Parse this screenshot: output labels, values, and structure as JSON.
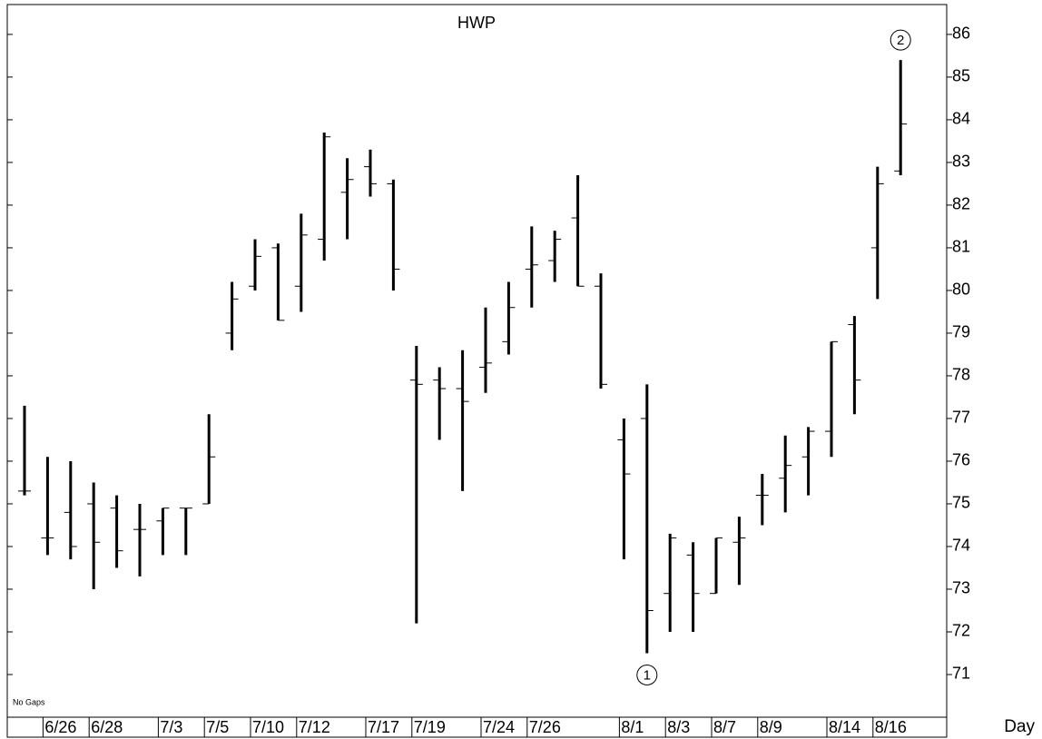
{
  "chart_data": {
    "type": "ohlc",
    "title": "HWP",
    "categories": [
      null,
      "6/26",
      null,
      "6/28",
      null,
      null,
      "7/3",
      null,
      "7/5",
      null,
      "7/10",
      null,
      "7/12",
      null,
      null,
      "7/17",
      null,
      "7/19",
      null,
      null,
      "7/24",
      null,
      "7/26",
      null,
      null,
      null,
      "8/1",
      null,
      "8/3",
      null,
      "8/7",
      null,
      "8/9",
      null,
      null,
      "8/14",
      null,
      "8/16",
      null
    ],
    "series": [
      {
        "color": "#000000",
        "open": [
          75.3,
          74.2,
          74.8,
          75.0,
          74.9,
          74.4,
          74.6,
          74.9,
          75.0,
          79.0,
          80.1,
          81.0,
          80.1,
          81.2,
          82.3,
          82.9,
          82.5,
          77.9,
          77.9,
          77.7,
          78.2,
          78.8,
          80.5,
          80.7,
          81.7,
          80.1,
          76.5,
          77.0,
          72.9,
          73.8,
          72.9,
          74.1,
          75.2,
          75.6,
          76.1,
          76.7,
          79.2,
          81.0,
          82.8
        ],
        "high": [
          77.3,
          76.1,
          76.0,
          75.5,
          75.2,
          75.0,
          74.9,
          74.9,
          77.1,
          80.2,
          81.2,
          81.1,
          81.8,
          83.7,
          83.1,
          83.3,
          82.6,
          78.7,
          78.2,
          78.6,
          79.6,
          80.2,
          81.5,
          81.4,
          82.7,
          80.4,
          77.0,
          77.8,
          74.3,
          74.1,
          74.2,
          74.7,
          75.7,
          76.6,
          76.8,
          78.8,
          79.4,
          82.9,
          85.4
        ],
        "low": [
          75.2,
          73.8,
          73.7,
          73.0,
          73.5,
          73.3,
          73.8,
          73.8,
          75.0,
          78.6,
          80.0,
          79.3,
          79.5,
          80.7,
          81.2,
          82.2,
          80.0,
          72.2,
          76.5,
          75.3,
          77.6,
          78.5,
          79.6,
          80.2,
          80.1,
          77.7,
          73.7,
          71.5,
          72.0,
          72.0,
          72.9,
          73.1,
          74.5,
          74.8,
          75.2,
          76.1,
          77.1,
          79.8,
          82.7
        ],
        "close": [
          75.3,
          74.2,
          74.0,
          74.1,
          73.9,
          74.4,
          74.9,
          74.9,
          76.1,
          79.8,
          80.8,
          79.3,
          81.3,
          83.6,
          82.6,
          82.5,
          80.5,
          77.8,
          77.7,
          77.4,
          78.3,
          79.6,
          80.6,
          81.2,
          80.1,
          77.8,
          75.7,
          72.5,
          74.2,
          72.9,
          74.2,
          74.2,
          75.2,
          75.9,
          76.7,
          78.8,
          77.9,
          82.5,
          83.9
        ]
      }
    ],
    "ylim": [
      70,
      86.7
    ],
    "yticks": [
      71,
      72,
      73,
      74,
      75,
      76,
      77,
      78,
      79,
      80,
      81,
      82,
      83,
      84,
      85,
      86
    ],
    "x_label": "Day",
    "note": "No Gaps",
    "annotations": [
      {
        "text": "1",
        "bar": 27,
        "position": "below"
      },
      {
        "text": "2",
        "bar": 38,
        "position": "above"
      }
    ]
  }
}
